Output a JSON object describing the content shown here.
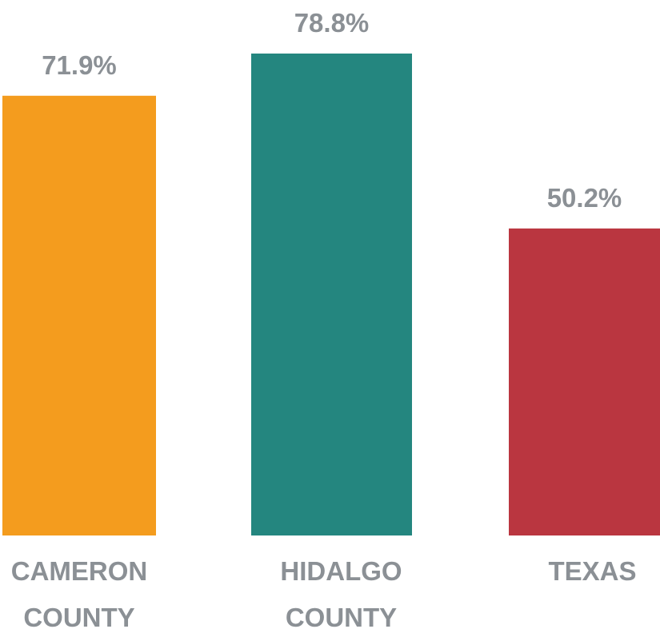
{
  "chart_data": {
    "type": "bar",
    "categories": [
      "CAMERON COUNTY",
      "HIDALGO COUNTY",
      "TEXAS"
    ],
    "values": [
      71.9,
      78.8,
      50.2
    ],
    "value_labels": [
      "71.9%",
      "78.8%",
      "50.2%"
    ],
    "colors": [
      "#f49c1e",
      "#24867f",
      "#ba3640"
    ]
  }
}
